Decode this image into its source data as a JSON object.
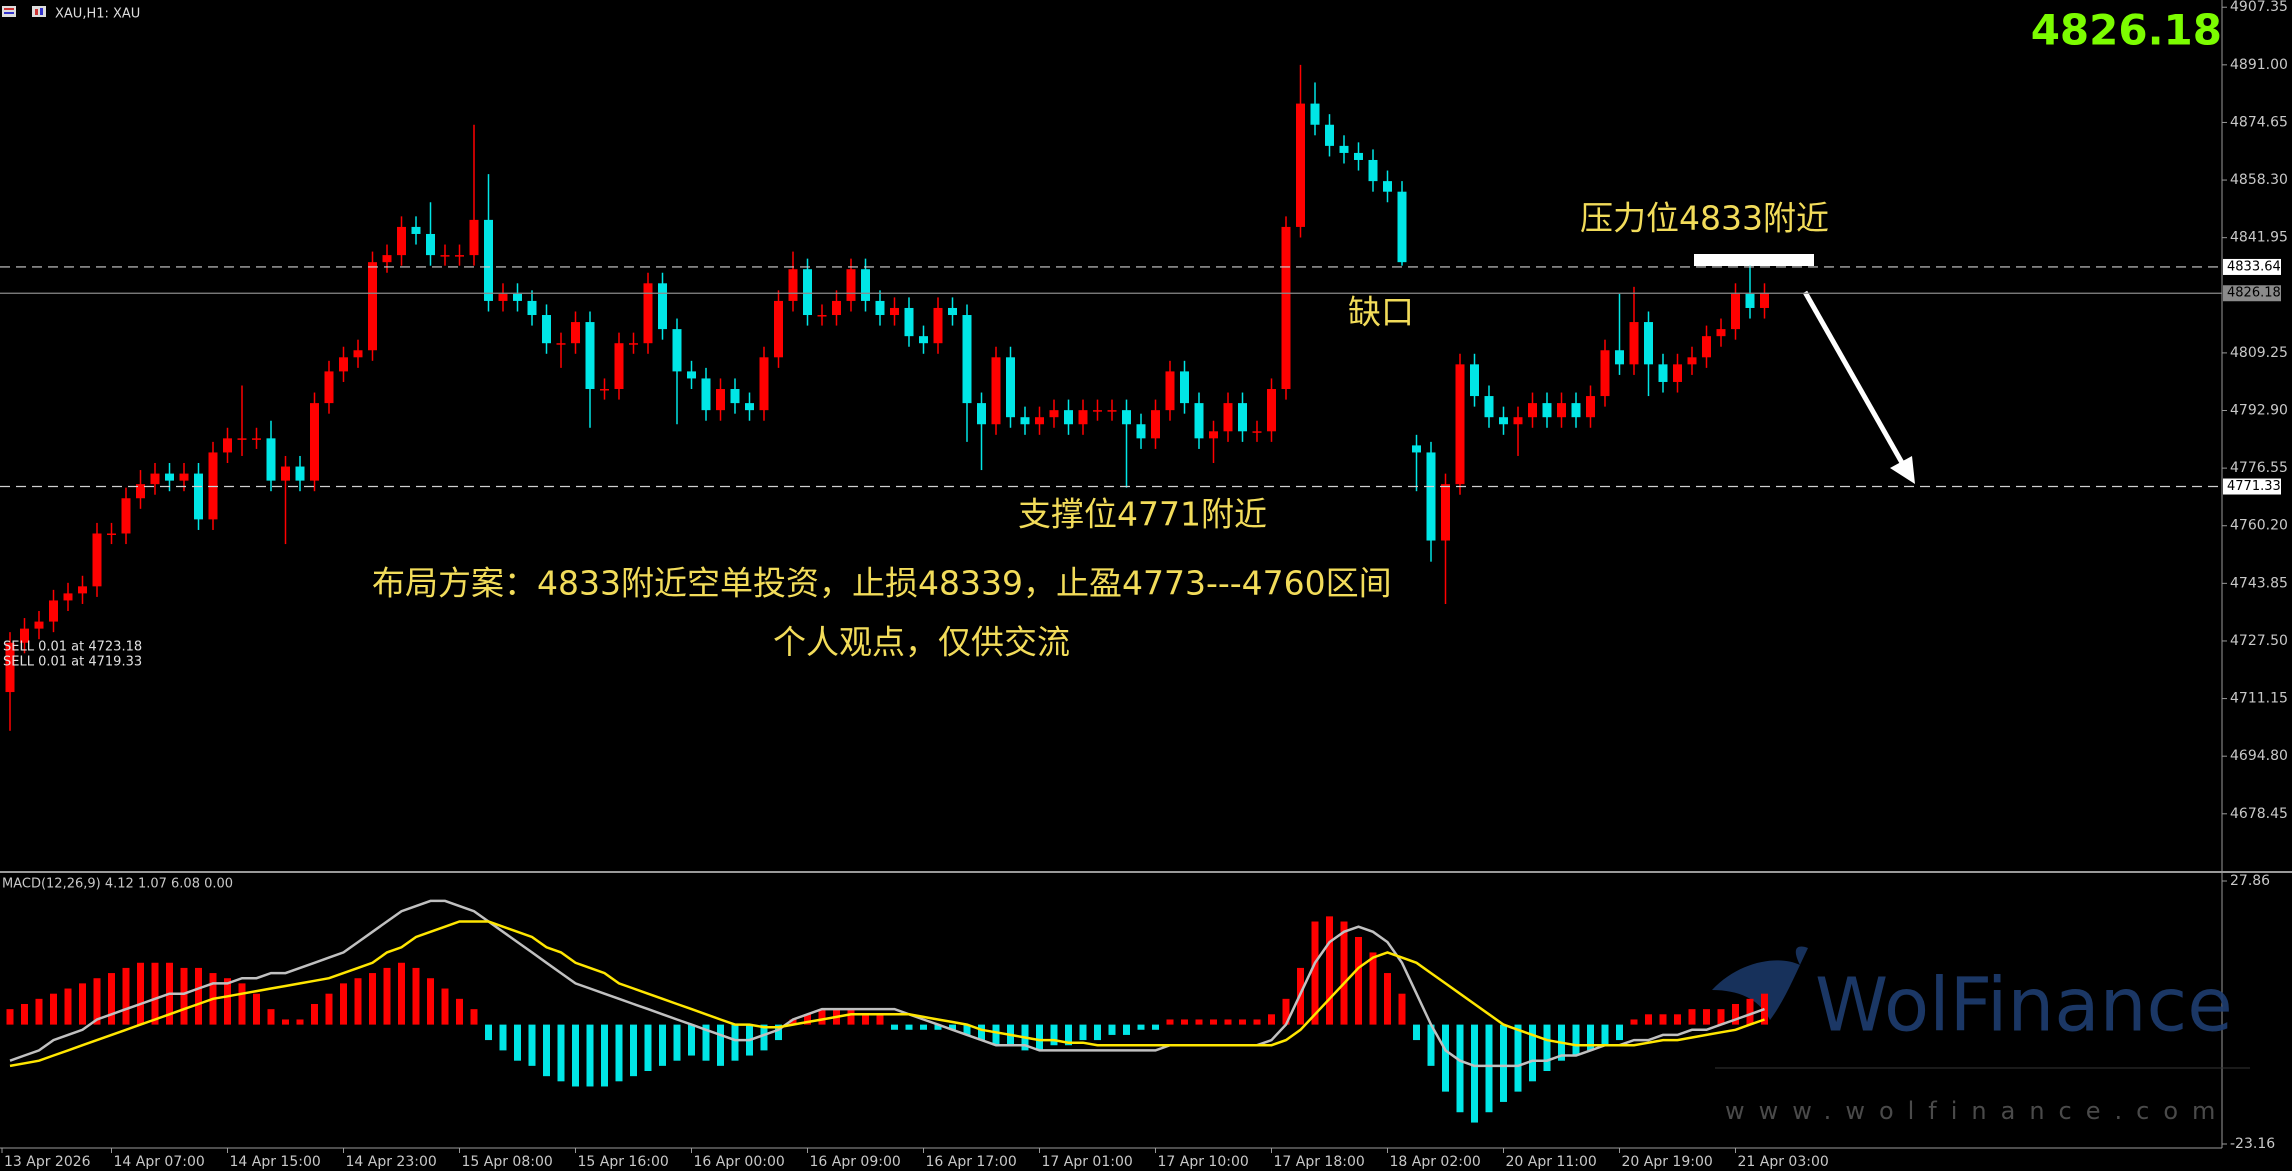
{
  "header": {
    "symbol": "XAU,H1: XAU"
  },
  "watermark": {
    "brand": "WolFinance",
    "url": "www.wolfinance.com"
  },
  "chart_data": [
    {
      "type": "candlestick",
      "categories": [
        "13 Apr 2026",
        null,
        null,
        null,
        null,
        null,
        null,
        "14 Apr 07:00",
        null,
        null,
        null,
        null,
        null,
        null,
        null,
        "14 Apr 15:00",
        null,
        null,
        null,
        null,
        null,
        null,
        null,
        "14 Apr 23:00",
        null,
        null,
        null,
        null,
        null,
        null,
        null,
        "15 Apr 08:00",
        null,
        null,
        null,
        null,
        null,
        null,
        null,
        "15 Apr 16:00",
        null,
        null,
        null,
        null,
        null,
        null,
        null,
        "16 Apr 00:00",
        null,
        null,
        null,
        null,
        null,
        null,
        null,
        "16 Apr 09:00",
        null,
        null,
        null,
        null,
        null,
        null,
        null,
        "16 Apr 17:00",
        null,
        null,
        null,
        null,
        null,
        null,
        null,
        "17 Apr 01:00",
        null,
        null,
        null,
        null,
        null,
        null,
        null,
        "17 Apr 10:00",
        null,
        null,
        null,
        null,
        null,
        null,
        null,
        "17 Apr 18:00",
        null,
        null,
        null,
        null,
        null,
        null,
        null,
        "18 Apr 02:00",
        null,
        null,
        null,
        null,
        null,
        null,
        null,
        "20 Apr 11:00",
        null,
        null,
        null,
        null,
        null,
        null,
        null,
        "20 Apr 19:00",
        null,
        null,
        null,
        null,
        null,
        null,
        null,
        "21 Apr 03:00",
        null,
        null
      ],
      "open": [
        4713,
        4727,
        4731,
        4733,
        4739,
        4741,
        4743,
        4758,
        4758,
        4768,
        4772,
        4775,
        4773,
        4775,
        4762,
        4781,
        4785,
        4785,
        4785,
        4773,
        4777,
        4773,
        4795,
        4804,
        4808,
        4810,
        4835,
        4837,
        4845,
        4843,
        4837,
        4837,
        4837,
        4847,
        4824,
        4826,
        4824,
        4820,
        4812,
        4812,
        4818,
        4799,
        4799,
        4812,
        4812,
        4829,
        4816,
        4804,
        4802,
        4793,
        4799,
        4795,
        4793,
        4808,
        4824,
        4833,
        4820,
        4820,
        4824,
        4833,
        4824,
        4820,
        4822,
        4814,
        4812,
        4822,
        4820,
        4795,
        4789,
        4808,
        4791,
        4789,
        4791,
        4793,
        4789,
        4793,
        4793,
        4793,
        4789,
        4785,
        4793,
        4804,
        4795,
        4785,
        4787,
        4795,
        4787,
        4787,
        4799,
        4845,
        4880,
        4874,
        4868,
        4866,
        4864,
        4858,
        4855,
        4783,
        4781,
        4756,
        4772,
        4806,
        4797,
        4791,
        4789,
        4791,
        4795,
        4791,
        4795,
        4791,
        4797,
        4810,
        4806,
        4818,
        4806,
        4801,
        4806,
        4808,
        4814,
        4816,
        4826,
        4822
      ],
      "high": [
        4730,
        4734,
        4736,
        4742,
        4744,
        4746,
        4761,
        4761,
        4771,
        4776,
        4778,
        4778,
        4778,
        4778,
        4784,
        4788,
        4800,
        4788,
        4790,
        4780,
        4780,
        4798,
        4807,
        4811,
        4813,
        4838,
        4840,
        4848,
        4848,
        4852,
        4840,
        4840,
        4874,
        4860,
        4829,
        4829,
        4827,
        4823,
        4815,
        4821,
        4821,
        4802,
        4815,
        4815,
        4832,
        4832,
        4819,
        4807,
        4805,
        4802,
        4802,
        4798,
        4811,
        4827,
        4838,
        4836,
        4823,
        4827,
        4836,
        4836,
        4827,
        4825,
        4825,
        4817,
        4825,
        4825,
        4823,
        4798,
        4811,
        4811,
        4794,
        4794,
        4796,
        4796,
        4796,
        4796,
        4796,
        4796,
        4792,
        4796,
        4807,
        4807,
        4798,
        4790,
        4798,
        4798,
        4790,
        4802,
        4848,
        4891,
        4886,
        4877,
        4871,
        4869,
        4867,
        4861,
        4858,
        4786,
        4784,
        4775,
        4809,
        4809,
        4800,
        4794,
        4794,
        4798,
        4798,
        4798,
        4798,
        4800,
        4813,
        4826,
        4828,
        4821,
        4809,
        4809,
        4811,
        4817,
        4819,
        4829,
        4834,
        4829
      ],
      "low": [
        4702,
        4724,
        4728,
        4730,
        4736,
        4738,
        4740,
        4755,
        4755,
        4765,
        4769,
        4770,
        4770,
        4759,
        4759,
        4778,
        4780,
        4782,
        4770,
        4755,
        4770,
        4770,
        4792,
        4801,
        4805,
        4807,
        4832,
        4834,
        4840,
        4834,
        4834,
        4834,
        4834,
        4821,
        4821,
        4821,
        4817,
        4809,
        4805,
        4809,
        4788,
        4796,
        4796,
        4809,
        4809,
        4813,
        4789,
        4799,
        4790,
        4790,
        4792,
        4790,
        4790,
        4805,
        4821,
        4817,
        4817,
        4817,
        4821,
        4821,
        4817,
        4817,
        4811,
        4809,
        4809,
        4817,
        4784,
        4776,
        4786,
        4788,
        4786,
        4786,
        4788,
        4786,
        4786,
        4790,
        4790,
        4771,
        4782,
        4782,
        4790,
        4792,
        4782,
        4778,
        4784,
        4784,
        4784,
        4784,
        4796,
        4842,
        4871,
        4865,
        4863,
        4861,
        4855,
        4852,
        4834,
        4770,
        4750,
        4738,
        4769,
        4794,
        4788,
        4786,
        4780,
        4788,
        4788,
        4788,
        4788,
        4788,
        4794,
        4803,
        4803,
        4797,
        4798,
        4798,
        4803,
        4805,
        4811,
        4813,
        4819,
        4819
      ],
      "close": [
        4727,
        4731,
        4733,
        4739,
        4741,
        4743,
        4758,
        4758,
        4768,
        4772,
        4775,
        4773,
        4775,
        4762,
        4781,
        4785,
        4785,
        4785,
        4773,
        4777,
        4773,
        4795,
        4804,
        4808,
        4810,
        4835,
        4837,
        4845,
        4843,
        4837,
        4837,
        4837,
        4847,
        4824,
        4826,
        4824,
        4820,
        4812,
        4812,
        4818,
        4799,
        4799,
        4812,
        4812,
        4829,
        4816,
        4804,
        4802,
        4793,
        4799,
        4795,
        4793,
        4808,
        4824,
        4833,
        4820,
        4820,
        4824,
        4833,
        4824,
        4820,
        4822,
        4814,
        4812,
        4822,
        4820,
        4795,
        4789,
        4808,
        4791,
        4789,
        4791,
        4793,
        4789,
        4793,
        4793,
        4793,
        4789,
        4785,
        4793,
        4804,
        4795,
        4785,
        4787,
        4795,
        4787,
        4787,
        4799,
        4845,
        4880,
        4874,
        4868,
        4866,
        4864,
        4858,
        4855,
        4835,
        4781,
        4756,
        4772,
        4806,
        4797,
        4791,
        4789,
        4791,
        4795,
        4791,
        4795,
        4791,
        4797,
        4810,
        4806,
        4818,
        4806,
        4801,
        4806,
        4808,
        4814,
        4816,
        4826,
        4822,
        4826.18
      ],
      "up_color": "#ff0000",
      "down_color": "#00e6e6",
      "ylim": [
        4662.5,
        4909.4
      ],
      "yticks": [
        4907.35,
        {
          "value": 4891,
          "label": "4891.00"
        },
        4874.65,
        {
          "value": 4858.3,
          "label": "4858.30"
        },
        4841.95,
        4809.25,
        {
          "value": 4792.9,
          "label": "4792.90"
        },
        4776.55,
        {
          "value": 4760.2,
          "label": "4760.20"
        },
        4743.85,
        {
          "value": 4727.5,
          "label": "4727.50"
        },
        4711.15,
        {
          "value": 4694.8,
          "label": "4694.80"
        },
        4678.45
      ],
      "current_price": 4826.18,
      "hlines": [
        4833.64,
        4771.33
      ],
      "annotations": [
        "压力位4833附近",
        "缺口",
        "支撑位4771附近",
        "布局方案：4833附近空单投资，止损48339，止盈4773---4760区间",
        "个人观点，仅供交流"
      ],
      "orders": [
        "SELL 0.01 at 4723.18",
        "SELL 0.01 at 4719.33"
      ]
    },
    {
      "type": "macd",
      "title": "MACD(12,26,9) 4.12 1.07 6.08 0.00",
      "ylim": [
        -23.16,
        27.86
      ],
      "yticks": [
        27.86,
        -23.16
      ],
      "histogram": {
        "up_color": "#ff0000",
        "down_color": "#00e6e6",
        "values": [
          3,
          4,
          5,
          6,
          7,
          8,
          9,
          10,
          11,
          12,
          12,
          12,
          11,
          11,
          10,
          9,
          8,
          6,
          3,
          1,
          1,
          4,
          6,
          8,
          9,
          10,
          11,
          12,
          11,
          9,
          7,
          5,
          3,
          -3,
          -5,
          -7,
          -8,
          -10,
          -11,
          -12,
          -12,
          -12,
          -11,
          -10,
          -9,
          -8,
          -7,
          -6,
          -7,
          -8,
          -7,
          -6,
          -5,
          -3,
          1,
          2,
          3,
          3,
          3,
          2,
          2,
          -1,
          -1,
          -1,
          -1,
          -1,
          -2,
          -3,
          -4,
          -4,
          -5,
          -5,
          -4,
          -4,
          -3,
          -3,
          -2,
          -2,
          -1,
          -1,
          1,
          1,
          1,
          1,
          1,
          1,
          1,
          2,
          5,
          11,
          20,
          21,
          20,
          17,
          14,
          10,
          6,
          -3,
          -8,
          -13,
          -17,
          -19,
          -17,
          -15,
          -13,
          -11,
          -9,
          -7,
          -6,
          -5,
          -4,
          -3,
          1,
          2,
          2,
          2,
          3,
          3,
          3,
          4,
          5,
          6
        ]
      },
      "series": [
        {
          "color": "#c0c0c0",
          "values": [
            -7,
            -6,
            -5,
            -3,
            -2,
            -1,
            1,
            2,
            3,
            4,
            5,
            6,
            6,
            7,
            8,
            8,
            9,
            9,
            10,
            10,
            11,
            12,
            13,
            14,
            16,
            18,
            20,
            22,
            23,
            24,
            24,
            23,
            22,
            20,
            18,
            16,
            14,
            12,
            10,
            8,
            7,
            6,
            5,
            4,
            3,
            2,
            1,
            0,
            -1,
            -2,
            -3,
            -3,
            -2,
            -1,
            1,
            2,
            3,
            3,
            3,
            3,
            3,
            3,
            2,
            1,
            0,
            -1,
            -2,
            -3,
            -4,
            -4,
            -4,
            -5,
            -5,
            -5,
            -5,
            -5,
            -5,
            -5,
            -5,
            -5,
            -4,
            -4,
            -4,
            -4,
            -4,
            -4,
            -4,
            -3,
            0,
            6,
            12,
            16,
            18,
            19,
            18,
            16,
            12,
            6,
            0,
            -5,
            -7,
            -8,
            -8,
            -8,
            -8,
            -7,
            -7,
            -6,
            -6,
            -5,
            -4,
            -4,
            -3,
            -3,
            -2,
            -2,
            -1,
            -1,
            0,
            1,
            2,
            3
          ]
        },
        {
          "color": "#ffe600",
          "values": [
            -8,
            -7.5,
            -7,
            -6,
            -5,
            -4,
            -3,
            -2,
            -1,
            0,
            1,
            2,
            3,
            4,
            5,
            5.5,
            6,
            6.5,
            7,
            7.5,
            8,
            8.5,
            9,
            10,
            11,
            12,
            14,
            15,
            17,
            18,
            19,
            20,
            20,
            20,
            19,
            18,
            17,
            15,
            14,
            12,
            11,
            10,
            8,
            7,
            6,
            5,
            4,
            3,
            2,
            1,
            0,
            0,
            -0.5,
            -0.5,
            0,
            0.5,
            1,
            1.5,
            2,
            2,
            2,
            2,
            2,
            1.5,
            1,
            0.5,
            0,
            -1,
            -1.5,
            -2,
            -2.5,
            -3,
            -3,
            -3.5,
            -3.5,
            -4,
            -4,
            -4,
            -4,
            -4,
            -4,
            -4,
            -4,
            -4,
            -4,
            -4,
            -4,
            -4,
            -3,
            -1,
            2,
            5,
            8,
            11,
            13,
            14,
            13,
            12,
            10,
            8,
            6,
            4,
            2,
            0,
            -1,
            -2,
            -3,
            -3.5,
            -4,
            -4,
            -4,
            -4,
            -4,
            -3.5,
            -3,
            -3,
            -2.5,
            -2,
            -1.5,
            -1,
            0,
            1
          ]
        }
      ]
    }
  ]
}
